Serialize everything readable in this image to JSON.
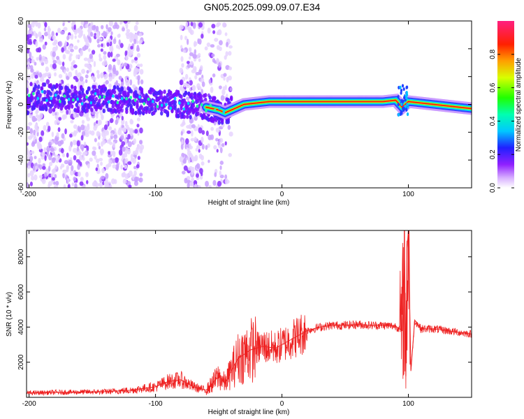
{
  "title": "GN05.2025.099.09.07.E34",
  "chart_data": [
    {
      "type": "heatmap",
      "xlabel": "Height of straight line (km)",
      "ylabel": "Frequency (Hz)",
      "xlim": [
        -202,
        150
      ],
      "ylim": [
        -60,
        60
      ],
      "xticks": [
        -200,
        -100,
        0,
        100
      ],
      "yticks": [
        -60,
        -40,
        -20,
        0,
        20,
        40,
        60
      ],
      "colorbar": {
        "label": "Normalized spectral amplitude",
        "range": [
          0,
          1
        ],
        "ticks": [
          "0.0",
          "0.2",
          "0.4",
          "0.6",
          "0.8"
        ],
        "colors": [
          "#ffffff",
          "#c080ff",
          "#8000ff",
          "#2020ff",
          "#00c0ff",
          "#00ffa0",
          "#40ff00",
          "#ffff00",
          "#ff8000",
          "#ff0000",
          "#ff2080"
        ]
      },
      "ridge": {
        "description_points_x": [
          -200,
          -180,
          -160,
          -140,
          -120,
          -100,
          -90,
          -80,
          -70,
          -60,
          -50,
          -45,
          -40,
          -30,
          -20,
          -10,
          0,
          10,
          20,
          40,
          60,
          80,
          90,
          95,
          100,
          110,
          120,
          130,
          140,
          150
        ],
        "description_points_y": [
          6,
          5,
          4,
          4,
          3,
          2,
          1,
          0,
          -1,
          -2,
          -4,
          -6,
          -4,
          0,
          1,
          2,
          2,
          2,
          2,
          2,
          2,
          2,
          3,
          -2,
          2,
          1,
          0,
          -1,
          -2,
          -3
        ]
      },
      "colors": {
        "frame": "#000000",
        "ridge_core": "#ff0000"
      }
    },
    {
      "type": "line",
      "xlabel": "Height of straight line (km)",
      "ylabel": "SNR (10 * v/v)",
      "xlim": [
        -202,
        150
      ],
      "ylim": [
        0,
        9500
      ],
      "xticks": [
        -200,
        -100,
        0,
        100
      ],
      "yticks": [
        2000,
        4000,
        6000,
        8000
      ],
      "series": [
        {
          "color": "#ee2020",
          "x": [
            -202,
            -180,
            -160,
            -140,
            -120,
            -100,
            -90,
            -80,
            -70,
            -60,
            -50,
            -45,
            -35,
            -25,
            -15,
            -5,
            0,
            10,
            20,
            30,
            40,
            50,
            60,
            70,
            80,
            90,
            95,
            97,
            98,
            99,
            100,
            102,
            105,
            110,
            120,
            130,
            140,
            150
          ],
          "y": [
            250,
            280,
            300,
            320,
            400,
            600,
            900,
            1000,
            600,
            400,
            1200,
            800,
            2200,
            2700,
            2900,
            2800,
            3000,
            3400,
            3800,
            4000,
            4100,
            4100,
            4150,
            4100,
            4100,
            4050,
            3800,
            7800,
            1200,
            8500,
            9500,
            1500,
            4400,
            3900,
            3900,
            3800,
            3700,
            3600
          ]
        }
      ]
    }
  ]
}
